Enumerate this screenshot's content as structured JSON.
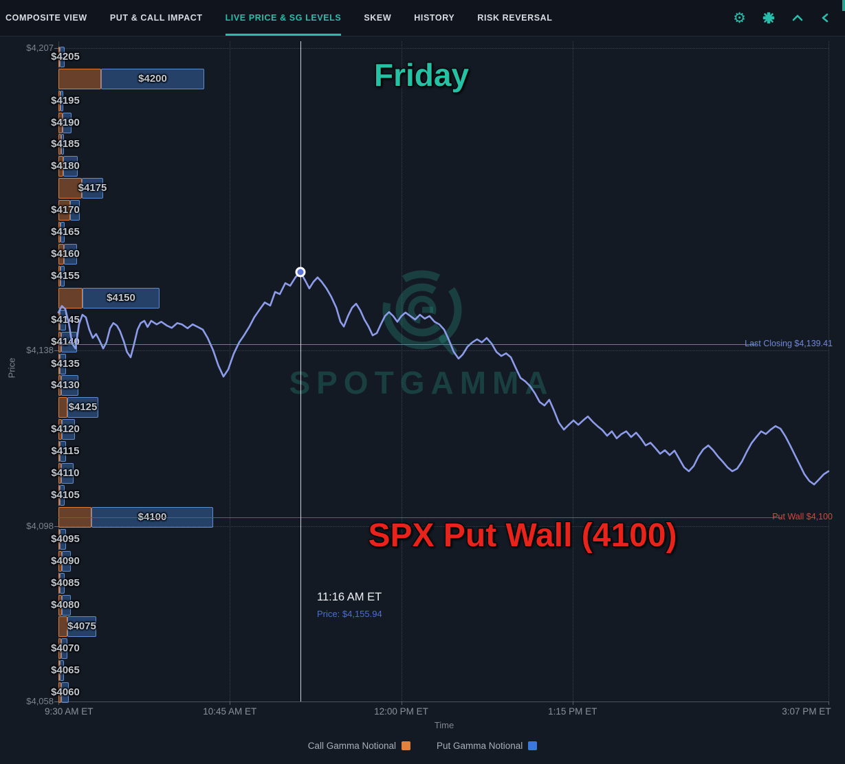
{
  "colors": {
    "accent": "#2abdab",
    "call_gamma": "#e0823e",
    "put_gamma": "#3a78e0",
    "price_line": "#8d9cea",
    "last_closing_line": "#5b79cf",
    "put_wall_line": "#c0392f",
    "friday_text": "#25c1a5",
    "put_wall_text": "#e8231c",
    "background": "#141a24"
  },
  "nav": {
    "tabs": [
      {
        "label": "Composite View",
        "active": false
      },
      {
        "label": "Put & Call Impact",
        "active": false
      },
      {
        "label": "Live Price & SG Levels",
        "active": true
      },
      {
        "label": "Skew",
        "active": false
      },
      {
        "label": "History",
        "active": false
      },
      {
        "label": "Risk Reversal",
        "active": false
      }
    ],
    "icons": [
      "settings-icon",
      "collapse-icon",
      "chevron-up-icon",
      "chevron-left-icon"
    ]
  },
  "axes": {
    "y_label": "Price",
    "x_label": "Time",
    "y_edge_ticks": [
      {
        "label": "$4,207",
        "value": 4207
      },
      {
        "label": "$4,138",
        "value": 4138
      },
      {
        "label": "$4,098",
        "value": 4098
      },
      {
        "label": "$4,058",
        "value": 4058
      }
    ],
    "x_ticks": [
      {
        "label": "9:30 AM ET",
        "min": 0
      },
      {
        "label": "10:45 AM ET",
        "min": 75
      },
      {
        "label": "12:00 PM ET",
        "min": 150
      },
      {
        "label": "1:15 PM ET",
        "min": 225
      },
      {
        "label": "3:07 PM ET",
        "min": 337
      }
    ]
  },
  "levels": [
    {
      "label": "Last Closing $4,139.41",
      "price": 4139.41
    },
    {
      "label": "Put Wall $4,100",
      "price": 4100
    }
  ],
  "annotations": {
    "friday": "Friday",
    "put_wall": "SPX Put Wall (4100)"
  },
  "tooltip": {
    "time": "11:16 AM ET",
    "price": "Price: $4,155.94"
  },
  "crosshair": {
    "time_min": 106,
    "price": 4155.94
  },
  "watermark": {
    "text": "SPOTGAMMA"
  },
  "legend": [
    {
      "label": "Call Gamma Notional",
      "color": "#e0823e"
    },
    {
      "label": "Put Gamma Notional",
      "color": "#3a78e0"
    }
  ],
  "chart_data": [
    {
      "type": "bar",
      "orientation": "horizontal",
      "title": "Call/Put gamma notional by strike (relative bar lengths as drawn)",
      "categories": [
        4205,
        4200,
        4195,
        4190,
        4185,
        4180,
        4175,
        4170,
        4165,
        4160,
        4155,
        4150,
        4145,
        4140,
        4135,
        4130,
        4125,
        4120,
        4115,
        4110,
        4105,
        4100,
        4095,
        4090,
        4085,
        4080,
        4075,
        4070,
        4065,
        4060
      ],
      "labels": [
        "$4205",
        "$4200",
        "$4195",
        "$4190",
        "$4185",
        "$4180",
        "$4175",
        "$4170",
        "$4165",
        "$4160",
        "$4155",
        "$4150",
        "$4145",
        "$4140",
        "$4135",
        "$4130",
        "$4125",
        "$4120",
        "$4115",
        "$4110",
        "$4105",
        "$4100",
        "$4095",
        "$4090",
        "$4085",
        "$4080",
        "$4075",
        "$4070",
        "$4065",
        "$4060"
      ],
      "series": [
        {
          "name": "Call Gamma Notional",
          "values": [
            2,
            62,
            3,
            6,
            4,
            7,
            34,
            17,
            3,
            8,
            3,
            35,
            2,
            4,
            2,
            4,
            13,
            5,
            2,
            4,
            2,
            48,
            2,
            5,
            2,
            5,
            13,
            4,
            2,
            4
          ]
        },
        {
          "name": "Put Gamma Notional",
          "values": [
            7,
            150,
            4,
            13,
            4,
            21,
            31,
            14,
            6,
            19,
            6,
            112,
            9,
            23,
            9,
            25,
            45,
            19,
            9,
            18,
            7,
            177,
            9,
            13,
            7,
            13,
            42,
            9,
            6,
            11
          ]
        }
      ],
      "ylim": [
        4058,
        4207
      ],
      "grid": "dotted"
    },
    {
      "type": "line",
      "name": "SPX intraday price",
      "x_unit": "minutes after 9:30 AM ET",
      "x_range": [
        0,
        337
      ],
      "y_range": [
        4058,
        4207
      ],
      "points": [
        [
          0,
          4146.7
        ],
        [
          1.5,
          4148.2
        ],
        [
          3,
          4147.5
        ],
        [
          4.5,
          4144.3
        ],
        [
          6,
          4139.6
        ],
        [
          7.5,
          4138.5
        ],
        [
          9,
          4144
        ],
        [
          10.5,
          4146.2
        ],
        [
          12,
          4145.6
        ],
        [
          13.5,
          4142.8
        ],
        [
          15,
          4140.9
        ],
        [
          16.5,
          4141.8
        ],
        [
          18,
          4140.3
        ],
        [
          19.6,
          4138.5
        ],
        [
          21,
          4139.9
        ],
        [
          22.6,
          4143.1
        ],
        [
          24,
          4144.3
        ],
        [
          25.6,
          4143.7
        ],
        [
          27,
          4142.4
        ],
        [
          28.6,
          4140.1
        ],
        [
          30,
          4137.7
        ],
        [
          31.6,
          4136.5
        ],
        [
          33,
          4139.3
        ],
        [
          34.6,
          4142.8
        ],
        [
          36,
          4144.3
        ],
        [
          37.6,
          4144.8
        ],
        [
          39,
          4143.4
        ],
        [
          40.6,
          4144.8
        ],
        [
          43,
          4144
        ],
        [
          45,
          4144.6
        ],
        [
          47.5,
          4143.7
        ],
        [
          49.6,
          4143.2
        ],
        [
          52,
          4144.3
        ],
        [
          54,
          4144
        ],
        [
          56.5,
          4143.1
        ],
        [
          58.7,
          4144
        ],
        [
          61,
          4143.4
        ],
        [
          63.2,
          4142.8
        ],
        [
          65.3,
          4140.9
        ],
        [
          67.7,
          4138.1
        ],
        [
          70,
          4134.6
        ],
        [
          72.2,
          4132.1
        ],
        [
          74.3,
          4133.7
        ],
        [
          76.7,
          4137.3
        ],
        [
          79.1,
          4139.9
        ],
        [
          81.2,
          4141.5
        ],
        [
          83.6,
          4143.5
        ],
        [
          85.7,
          4145.6
        ],
        [
          88.2,
          4147.5
        ],
        [
          90.3,
          4149
        ],
        [
          92.7,
          4148.3
        ],
        [
          94.8,
          4151.4
        ],
        [
          96.9,
          4150.9
        ],
        [
          99.3,
          4153.4
        ],
        [
          101.4,
          4152.8
        ],
        [
          103.8,
          4154.8
        ],
        [
          105.9,
          4155.9
        ],
        [
          108,
          4154
        ],
        [
          109.8,
          4152.2
        ],
        [
          111.6,
          4153.7
        ],
        [
          113.4,
          4154.7
        ],
        [
          115.2,
          4153.7
        ],
        [
          117.3,
          4152.2
        ],
        [
          119.4,
          4150.3
        ],
        [
          121.6,
          4147.8
        ],
        [
          123.4,
          4144.6
        ],
        [
          124.9,
          4143.5
        ],
        [
          126.7,
          4145.9
        ],
        [
          128.5,
          4147.8
        ],
        [
          130.3,
          4148.7
        ],
        [
          132.1,
          4147.2
        ],
        [
          133.9,
          4145.1
        ],
        [
          135.7,
          4143.5
        ],
        [
          137.5,
          4141.5
        ],
        [
          139.3,
          4142
        ],
        [
          141.1,
          4144
        ],
        [
          142.9,
          4145.9
        ],
        [
          144.7,
          4146.8
        ],
        [
          146.5,
          4145.9
        ],
        [
          148.3,
          4144.6
        ],
        [
          150.1,
          4145.9
        ],
        [
          151.9,
          4146.7
        ],
        [
          154,
          4145.9
        ],
        [
          156.1,
          4145.1
        ],
        [
          158.2,
          4146.2
        ],
        [
          160.3,
          4145.3
        ],
        [
          162.4,
          4145.9
        ],
        [
          164.6,
          4144.6
        ],
        [
          166.7,
          4144
        ],
        [
          168.8,
          4142.8
        ],
        [
          170.9,
          4140.4
        ],
        [
          173,
          4137.7
        ],
        [
          175.1,
          4136.2
        ],
        [
          176.9,
          4137.1
        ],
        [
          179,
          4138.9
        ],
        [
          181.1,
          4139.9
        ],
        [
          183.2,
          4140.6
        ],
        [
          185.3,
          4139.9
        ],
        [
          187.4,
          4140.9
        ],
        [
          189.6,
          4139.6
        ],
        [
          191.7,
          4137.7
        ],
        [
          193.8,
          4136.8
        ],
        [
          195.9,
          4137.4
        ],
        [
          198,
          4136.5
        ],
        [
          200.1,
          4134.1
        ],
        [
          202.2,
          4131.8
        ],
        [
          204.3,
          4131
        ],
        [
          206.4,
          4129.9
        ],
        [
          208.5,
          4128.3
        ],
        [
          210.6,
          4126.3
        ],
        [
          212.7,
          4125.5
        ],
        [
          214.8,
          4126.8
        ],
        [
          216.9,
          4124.3
        ],
        [
          219,
          4121.6
        ],
        [
          221.2,
          4120
        ],
        [
          223.3,
          4121.1
        ],
        [
          225.4,
          4122.1
        ],
        [
          227.5,
          4121.1
        ],
        [
          229.6,
          4122.1
        ],
        [
          231.7,
          4123
        ],
        [
          233.8,
          4121.8
        ],
        [
          235.9,
          4120.8
        ],
        [
          238,
          4119.9
        ],
        [
          240.1,
          4118.6
        ],
        [
          242.2,
          4119.6
        ],
        [
          244.3,
          4118
        ],
        [
          246.4,
          4119
        ],
        [
          248.5,
          4119.6
        ],
        [
          250.6,
          4118.3
        ],
        [
          252.8,
          4119.3
        ],
        [
          254.9,
          4118
        ],
        [
          257,
          4116.4
        ],
        [
          259.1,
          4117
        ],
        [
          261.2,
          4115.8
        ],
        [
          263.3,
          4114.5
        ],
        [
          265.4,
          4115.3
        ],
        [
          267.5,
          4114.2
        ],
        [
          269.6,
          4115.2
        ],
        [
          271.7,
          4113.3
        ],
        [
          273.8,
          4111.4
        ],
        [
          275.9,
          4110.5
        ],
        [
          278,
          4111.7
        ],
        [
          280.1,
          4113.9
        ],
        [
          282.2,
          4115.5
        ],
        [
          284.4,
          4116.4
        ],
        [
          286.5,
          4115.3
        ],
        [
          288.6,
          4113.9
        ],
        [
          290.7,
          4112.7
        ],
        [
          292.8,
          4111.4
        ],
        [
          294.9,
          4110.5
        ],
        [
          297,
          4111.1
        ],
        [
          299.1,
          4112.7
        ],
        [
          301.2,
          4114.9
        ],
        [
          303.3,
          4116.9
        ],
        [
          305.4,
          4118.3
        ],
        [
          307.5,
          4119.6
        ],
        [
          309.6,
          4119
        ],
        [
          311.7,
          4120
        ],
        [
          313.8,
          4120.8
        ],
        [
          316,
          4120.2
        ],
        [
          318.1,
          4118.5
        ],
        [
          320.2,
          4116.4
        ],
        [
          322.3,
          4114.2
        ],
        [
          324.4,
          4112
        ],
        [
          326.5,
          4109.8
        ],
        [
          328.6,
          4108.3
        ],
        [
          330.7,
          4107.5
        ],
        [
          332.8,
          4108.6
        ],
        [
          334.9,
          4109.8
        ],
        [
          337,
          4110.5
        ]
      ]
    }
  ]
}
